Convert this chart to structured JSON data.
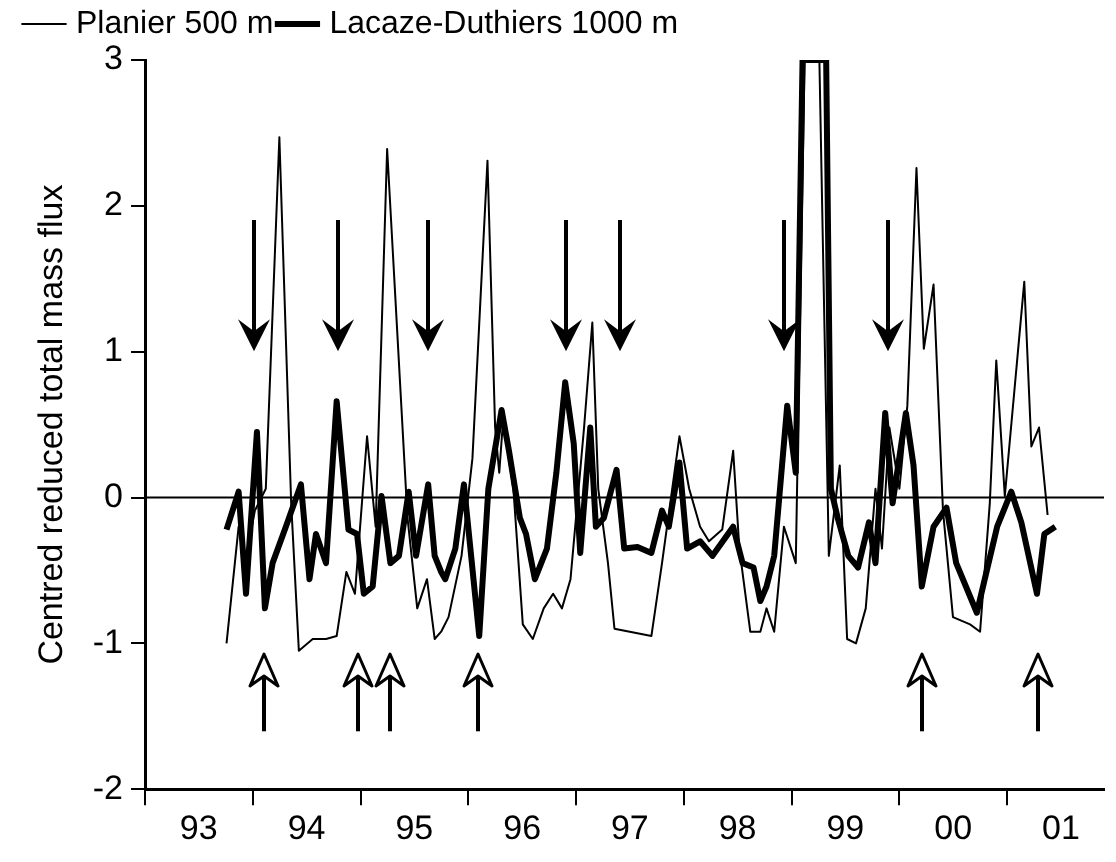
{
  "chart_data": {
    "type": "line",
    "ylabel": "Centred reduced total mass flux",
    "xlim": [
      "1993-01-01",
      "2001-11-25"
    ],
    "ylim": [
      -2,
      3
    ],
    "xticks": [
      {
        "value": "1993-01-01",
        "label": null
      },
      {
        "value": "1993-07-02",
        "label": "93"
      },
      {
        "value": "1994-01-01",
        "label": null
      },
      {
        "value": "1994-07-02",
        "label": "94"
      },
      {
        "value": "1995-01-01",
        "label": null
      },
      {
        "value": "1995-07-02",
        "label": "95"
      },
      {
        "value": "1996-01-01",
        "label": null
      },
      {
        "value": "1996-07-02",
        "label": "96"
      },
      {
        "value": "1997-01-01",
        "label": null
      },
      {
        "value": "1997-07-02",
        "label": "97"
      },
      {
        "value": "1998-01-01",
        "label": null
      },
      {
        "value": "1998-07-02",
        "label": "98"
      },
      {
        "value": "1999-01-01",
        "label": null
      },
      {
        "value": "1999-07-02",
        "label": "99"
      },
      {
        "value": "2000-01-01",
        "label": null
      },
      {
        "value": "2000-07-02",
        "label": "00"
      },
      {
        "value": "2001-01-01",
        "label": null
      },
      {
        "value": "2001-07-02",
        "label": "01"
      }
    ],
    "yticks": [
      -2,
      -1,
      0,
      1,
      2,
      3
    ],
    "grid": false,
    "legend": "top left",
    "ref_lines": [
      {
        "axis": "y",
        "value": 0,
        "color": "#000000"
      }
    ],
    "series": [
      {
        "name": "Planier 500 m",
        "color": "#000000",
        "x": [
          "1993-10-04",
          "1993-11-14",
          "1993-12-06",
          "1994-01-08",
          "1994-02-14",
          "1994-04-01",
          "1994-05-11",
          "1994-06-06",
          "1994-07-23",
          "1994-09-06",
          "1994-10-12",
          "1994-11-14",
          "1994-12-13",
          "1995-01-23",
          "1995-02-21",
          "1995-04-01",
          "1995-06-09",
          "1995-07-12",
          "1995-08-14",
          "1995-09-09",
          "1995-10-01",
          "1995-10-26",
          "1995-12-09",
          "1996-01-15",
          "1996-03-06",
          "1996-04-01",
          "1996-04-15",
          "1996-04-28",
          "1996-06-02",
          "1996-07-04",
          "1996-08-07",
          "1996-09-13",
          "1996-10-15",
          "1996-11-14",
          "1996-12-13",
          "1997-01-28",
          "1997-02-25",
          "1997-03-17",
          "1997-04-19",
          "1997-05-11",
          "1997-09-13",
          "1997-10-19",
          "1997-12-17",
          "1998-01-19",
          "1998-02-25",
          "1998-03-27",
          "1998-05-11",
          "1998-06-17",
          "1998-07-08",
          "1998-08-14",
          "1998-09-17",
          "1998-10-08",
          "1998-11-03",
          "1998-12-06",
          "1999-01-15",
          "1999-02-14",
          "1999-04-05",
          "1999-05-07",
          "1999-06-13",
          "1999-07-08",
          "1999-08-07",
          "1999-09-09",
          "1999-10-12",
          "1999-11-03",
          "1999-11-28",
          "2000-01-01",
          "2000-01-28",
          "2000-02-28",
          "2000-03-24",
          "2000-04-26",
          "2000-05-28",
          "2000-07-01",
          "2000-08-28",
          "2000-10-01",
          "2000-11-03",
          "2000-11-25",
          "2000-12-24",
          "2001-02-28",
          "2001-03-24",
          "2001-04-19",
          "2001-05-18"
        ],
        "values": [
          -1.0,
          -0.2,
          -0.45,
          -0.09,
          0.06,
          2.47,
          -0.04,
          -1.05,
          -0.97,
          -0.97,
          -0.95,
          -0.51,
          -0.66,
          0.42,
          -0.2,
          2.39,
          -0.14,
          -0.76,
          -0.56,
          -0.97,
          -0.92,
          -0.82,
          -0.4,
          0.27,
          2.31,
          0.48,
          0.17,
          0.53,
          0.06,
          -0.87,
          -0.97,
          -0.76,
          -0.66,
          -0.76,
          -0.56,
          0.48,
          1.2,
          0.06,
          -0.45,
          -0.9,
          -0.95,
          -0.45,
          0.42,
          0.06,
          -0.2,
          -0.3,
          -0.22,
          0.32,
          -0.35,
          -0.92,
          -0.92,
          -0.76,
          -0.92,
          -0.2,
          -0.45,
          3,
          3,
          -0.4,
          0.22,
          -0.97,
          -1.0,
          -0.76,
          0.06,
          -0.35,
          0.48,
          0.06,
          0.63,
          2.26,
          1.02,
          1.46,
          -0.09,
          -0.82,
          -0.87,
          -0.92,
          -0.04,
          0.94,
          0.01,
          1.48,
          0.35,
          0.48,
          -0.12
        ]
      },
      {
        "name": "Lacaze-Duthiers 1000 m",
        "color": "#000000",
        "x": [
          "1993-10-04",
          "1993-11-14",
          "1993-12-09",
          "1994-01-15",
          "1994-02-11",
          "1994-03-09",
          "1994-04-23",
          "1994-06-13",
          "1994-07-12",
          "1994-08-03",
          "1994-09-06",
          "1994-10-12",
          "1994-11-21",
          "1994-12-20",
          "1995-01-12",
          "1995-02-11",
          "1995-03-13",
          "1995-04-12",
          "1995-05-11",
          "1995-06-13",
          "1995-07-08",
          "1995-08-18",
          "1995-09-09",
          "1995-10-01",
          "1995-10-15",
          "1995-11-18",
          "1995-12-17",
          "1996-01-08",
          "1996-02-07",
          "1996-03-09",
          "1996-04-23",
          "1996-05-18",
          "1996-06-24",
          "1996-07-15",
          "1996-08-14",
          "1996-09-24",
          "1996-10-26",
          "1996-11-25",
          "1996-12-24",
          "1997-01-15",
          "1997-02-18",
          "1997-03-09",
          "1997-04-05",
          "1997-05-18",
          "1997-06-13",
          "1997-07-28",
          "1997-09-13",
          "1997-10-19",
          "1997-11-11",
          "1997-12-17",
          "1998-01-12",
          "1998-02-25",
          "1998-04-08",
          "1998-06-17",
          "1998-07-19",
          "1998-08-25",
          "1998-09-17",
          "1998-10-08",
          "1998-11-03",
          "1998-12-17",
          "1999-01-15",
          "1999-02-07",
          "1999-04-28",
          "1999-05-14",
          "1999-06-06",
          "1999-07-12",
          "1999-08-14",
          "1999-09-20",
          "1999-10-12",
          "1999-11-14",
          "1999-12-09",
          "2000-01-23",
          "2000-02-18",
          "2000-03-17",
          "2000-04-26",
          "2000-06-09",
          "2000-07-12",
          "2000-09-20",
          "2000-11-28",
          "2001-01-15",
          "2001-02-18",
          "2001-04-12",
          "2001-05-07",
          "2001-06-13"
        ],
        "values": [
          -0.22,
          0.04,
          -0.66,
          0.45,
          -0.76,
          -0.45,
          -0.2,
          0.09,
          -0.56,
          -0.25,
          -0.45,
          0.66,
          -0.22,
          -0.25,
          -0.66,
          -0.61,
          0.01,
          -0.45,
          -0.4,
          0.04,
          -0.4,
          0.09,
          -0.4,
          -0.51,
          -0.56,
          -0.35,
          0.09,
          -0.35,
          -0.95,
          0.06,
          0.6,
          0.32,
          -0.14,
          -0.25,
          -0.56,
          -0.35,
          0.17,
          0.79,
          0.37,
          -0.38,
          0.48,
          -0.2,
          -0.14,
          0.19,
          -0.35,
          -0.34,
          -0.38,
          -0.09,
          -0.2,
          0.24,
          -0.35,
          -0.3,
          -0.4,
          -0.2,
          -0.45,
          -0.48,
          -0.71,
          -0.61,
          -0.4,
          0.63,
          0.17,
          3,
          3,
          0.06,
          -0.14,
          -0.4,
          -0.48,
          -0.17,
          -0.45,
          0.58,
          -0.04,
          0.58,
          0.22,
          -0.61,
          -0.2,
          -0.07,
          -0.45,
          -0.79,
          -0.2,
          0.04,
          -0.17,
          -0.66,
          -0.25,
          -0.2
        ]
      }
    ]
  }
}
